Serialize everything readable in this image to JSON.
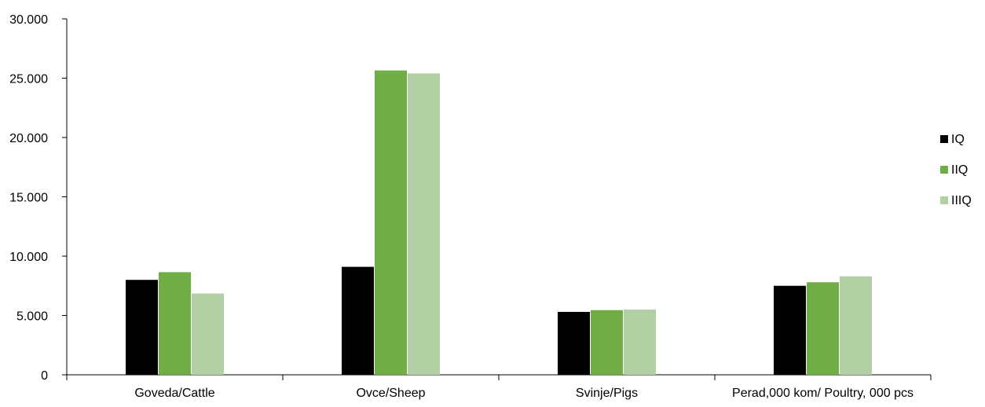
{
  "chart_data": {
    "type": "bar",
    "categories": [
      "Goveda/Cattle",
      "Ovce/Sheep",
      "Svinje/Pigs",
      "Perad,000 kom/ Poultry, 000 pcs"
    ],
    "series": [
      {
        "name": "IQ",
        "color": "#000000",
        "values": [
          8000,
          9100,
          5300,
          7500
        ]
      },
      {
        "name": "IIQ",
        "color": "#70ad47",
        "values": [
          8650,
          25650,
          5450,
          7800
        ]
      },
      {
        "name": "IIIQ",
        "color": "#b3cfa4",
        "values": [
          6850,
          25400,
          5500,
          8300
        ]
      }
    ],
    "ylim": [
      0,
      30000
    ],
    "yticks": [
      0,
      5000,
      10000,
      15000,
      20000,
      25000,
      30000
    ],
    "ytick_labels": [
      "0",
      "5.000",
      "10.000",
      "15.000",
      "20.000",
      "25.000",
      "30.000"
    ],
    "title": "",
    "xlabel": "",
    "ylabel": "",
    "grid": false,
    "legend_position": "right"
  }
}
